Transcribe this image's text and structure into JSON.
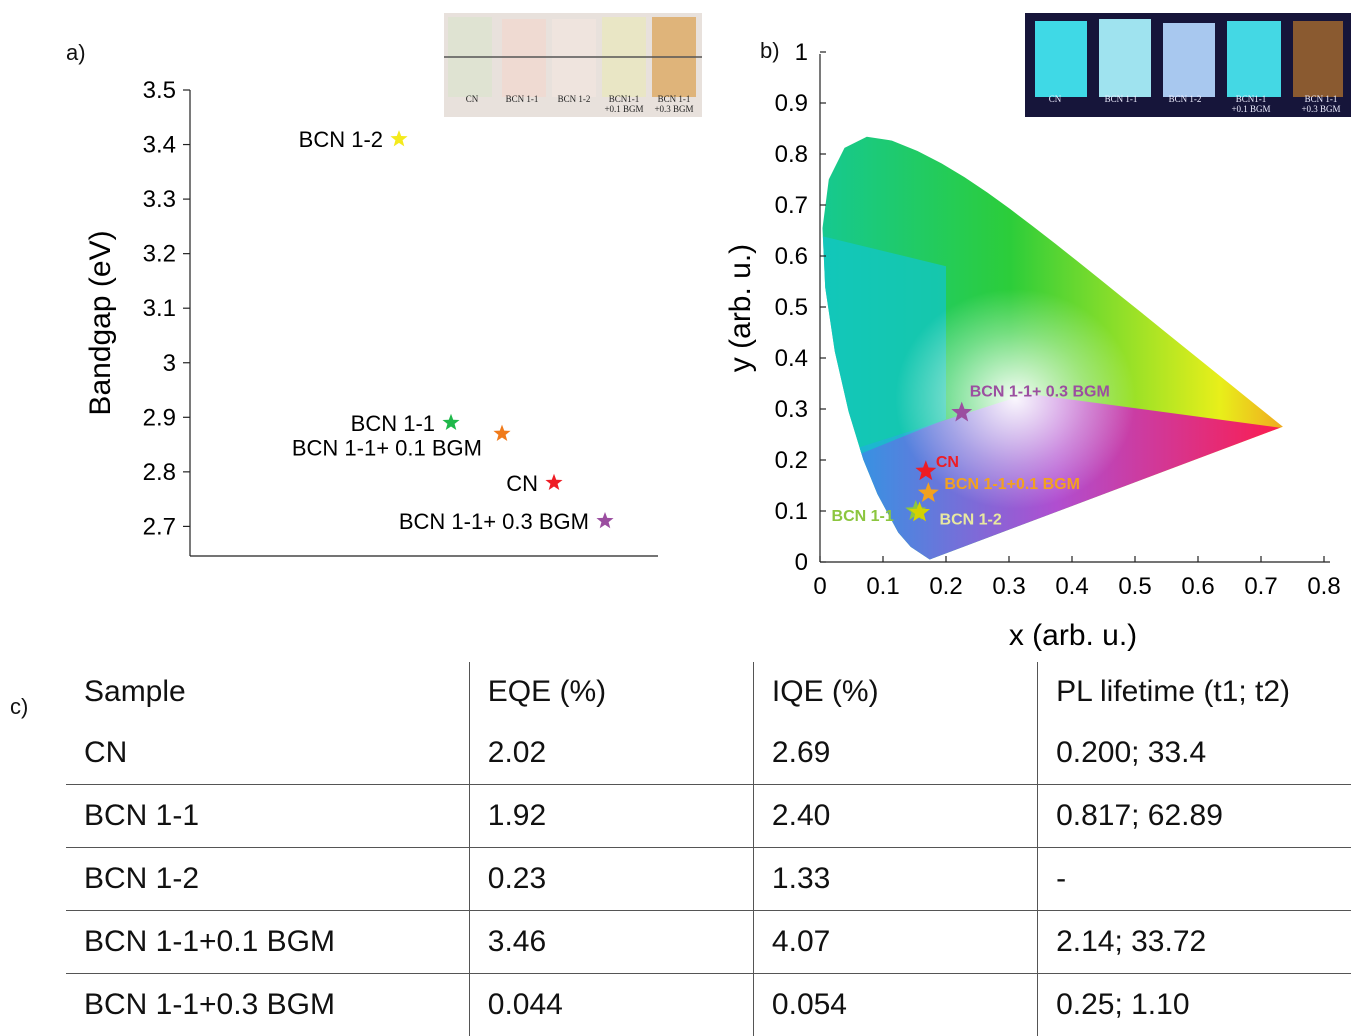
{
  "panels": {
    "a_label": "a)",
    "b_label": "b)",
    "c_label": "c)"
  },
  "photos": {
    "ambient_labels": [
      "CN",
      "BCN 1-1",
      "BCN 1-2",
      "BCN1-1\n+0.1 BGM",
      "BCN 1-1\n+0.3 BGM"
    ],
    "uv_labels": [
      "CN",
      "BCN 1-1",
      "BCN 1-2",
      "BCN1-1\n+0.1 BGM",
      "BCN 1-1\n+0.3 BGM"
    ]
  },
  "chart_data": [
    {
      "type": "scatter",
      "title": "",
      "xlabel": "",
      "ylabel": "Bandgap (eV)",
      "ylim": [
        2.65,
        3.52
      ],
      "yticks": [
        "3.5",
        "3.4",
        "3.3",
        "3.2",
        "3.1",
        "3",
        "2.9",
        "2.8",
        "2.7"
      ],
      "grid": false,
      "points": [
        {
          "label": "BCN 1-2",
          "value": 3.41,
          "color": "#f4ea1c",
          "label_side": "left"
        },
        {
          "label": "BCN 1-1",
          "value": 2.89,
          "color": "#1fb84a",
          "label_side": "left"
        },
        {
          "label": "BCN 1-1+ 0.1 BGM",
          "value": 2.87,
          "color": "#f07a1a",
          "label_side": "left-below"
        },
        {
          "label": "CN",
          "value": 2.78,
          "color": "#ee1c24",
          "label_side": "left"
        },
        {
          "label": "BCN 1-1+ 0.3 BGM",
          "value": 2.71,
          "color": "#9b4ea0",
          "label_side": "left"
        }
      ]
    },
    {
      "type": "scatter",
      "title": "",
      "xlabel": "x (arb. u.)",
      "ylabel": "y (arb. u.)",
      "xlim": [
        0,
        0.8
      ],
      "ylim": [
        0,
        1
      ],
      "xticks": [
        "0",
        "0.1",
        "0.2",
        "0.3",
        "0.4",
        "0.5",
        "0.6",
        "0.7",
        "0.8"
      ],
      "yticks": [
        "0",
        "0.1",
        "0.2",
        "0.3",
        "0.4",
        "0.5",
        "0.6",
        "0.7",
        "0.8",
        "0.9",
        "1"
      ],
      "grid": false,
      "points": [
        {
          "label": "BCN 1-1+ 0.3 BGM",
          "x": 0.225,
          "y": 0.293,
          "color": "#9b4ea0",
          "label_color": "#9b4ea0"
        },
        {
          "label": "CN",
          "x": 0.168,
          "y": 0.178,
          "color": "#ee1c24",
          "label_color": "#ee1c24"
        },
        {
          "label": "BCN 1-1+0.1 BGM",
          "x": 0.172,
          "y": 0.135,
          "color": "#f2a120",
          "label_color": "#f2a120"
        },
        {
          "label": "BCN 1-1",
          "x": 0.152,
          "y": 0.1,
          "color": "#8cc63f",
          "label_color": "#8cc63f"
        },
        {
          "label": "BCN 1-2",
          "x": 0.158,
          "y": 0.097,
          "color": "#d4d200",
          "label_color": "#e8e8a0"
        }
      ]
    }
  ],
  "table": {
    "headers": [
      "Sample",
      "EQE (%)",
      "IQE (%)",
      "PL lifetime (t1; t2)"
    ],
    "rows": [
      [
        "CN",
        "2.02",
        "2.69",
        "0.200; 33.4"
      ],
      [
        "BCN 1-1",
        "1.92",
        "2.40",
        "0.817; 62.89"
      ],
      [
        "BCN 1-2",
        "0.23",
        "1.33",
        "-"
      ],
      [
        "BCN 1-1+0.1 BGM",
        "3.46",
        "4.07",
        "2.14; 33.72"
      ],
      [
        "BCN 1-1+0.3 BGM",
        "0.044",
        "0.054",
        "0.25; 1.10"
      ]
    ]
  }
}
